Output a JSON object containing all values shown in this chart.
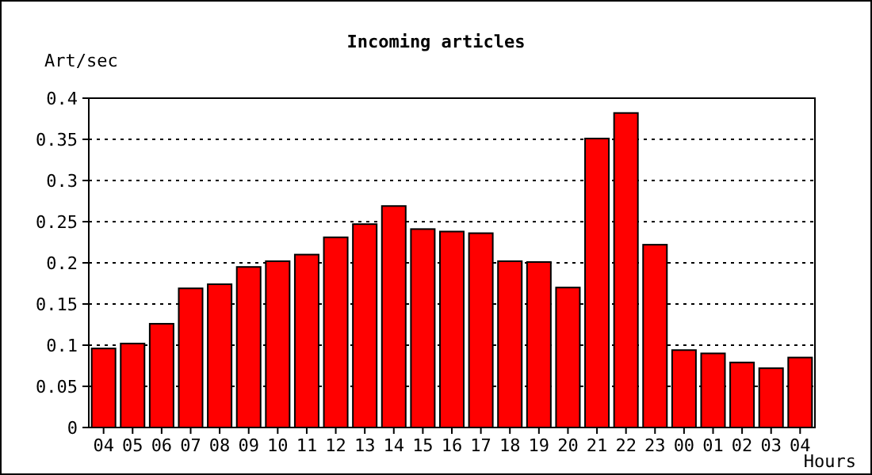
{
  "chart_data": {
    "type": "bar",
    "title": "Incoming articles",
    "xlabel": "Hours",
    "ylabel": "Art/sec",
    "categories": [
      "04",
      "05",
      "06",
      "07",
      "08",
      "09",
      "10",
      "11",
      "12",
      "13",
      "14",
      "15",
      "16",
      "17",
      "18",
      "19",
      "20",
      "21",
      "22",
      "23",
      "00",
      "01",
      "02",
      "03",
      "04"
    ],
    "values": [
      0.096,
      0.102,
      0.126,
      0.169,
      0.174,
      0.195,
      0.202,
      0.21,
      0.231,
      0.247,
      0.269,
      0.241,
      0.238,
      0.236,
      0.202,
      0.201,
      0.17,
      0.351,
      0.382,
      0.222,
      0.094,
      0.09,
      0.079,
      0.072,
      0.085
    ],
    "color": "#ff0000",
    "ylim": [
      0,
      0.4
    ],
    "yticks": [
      0,
      0.05,
      0.1,
      0.15,
      0.2,
      0.25,
      0.3,
      0.35,
      0.4
    ],
    "grid": "y"
  }
}
